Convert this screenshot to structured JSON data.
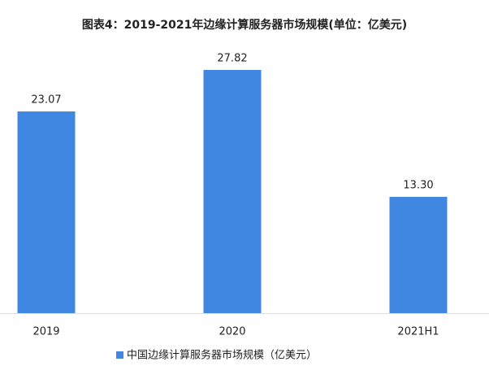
{
  "chart_data": {
    "type": "bar",
    "title": "图表4：2019-2021年边缘计算服务器市场规模(单位：亿美元)",
    "categories": [
      "2019",
      "2020",
      "2021H1"
    ],
    "series": [
      {
        "name": "中国边缘计算服务器市场规模（亿美元）",
        "color": "#3f87e0",
        "values": [
          23.07,
          27.82,
          13.3
        ],
        "value_labels": [
          "23.07",
          "27.82",
          "13.30"
        ]
      }
    ]
  }
}
